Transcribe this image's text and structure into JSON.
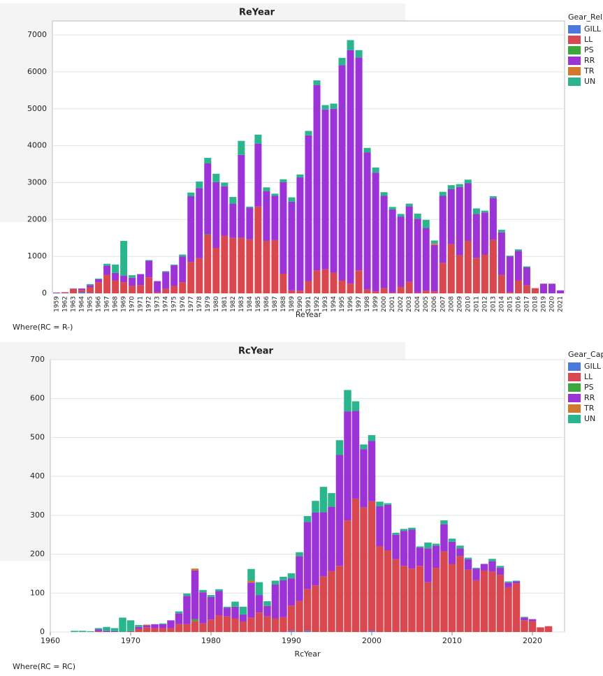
{
  "chart_data": [
    {
      "type": "bar",
      "stacked": true,
      "title": "ReYear",
      "x_label": "ReYear",
      "footnote": "Where(RC = R-)",
      "legend_title": "Gear_Rel",
      "categories": [
        "1959",
        "1962",
        "1963",
        "1964",
        "1965",
        "1966",
        "1967",
        "1968",
        "1969",
        "1970",
        "1971",
        "1972",
        "1973",
        "1974",
        "1975",
        "1976",
        "1977",
        "1978",
        "1979",
        "1980",
        "1981",
        "1982",
        "1983",
        "1984",
        "1985",
        "1986",
        "1987",
        "1988",
        "1989",
        "1990",
        "1991",
        "1992",
        "1993",
        "1994",
        "1995",
        "1996",
        "1997",
        "1998",
        "1999",
        "2000",
        "2001",
        "2002",
        "2003",
        "2004",
        "2005",
        "2006",
        "2007",
        "2008",
        "2009",
        "2010",
        "2011",
        "2012",
        "2013",
        "2014",
        "2015",
        "2016",
        "2017",
        "2018",
        "2019",
        "2020",
        "2021"
      ],
      "series": [
        {
          "name": "GILL",
          "color": "#4a78dc",
          "values": [
            0,
            0,
            0,
            30,
            10,
            0,
            0,
            0,
            0,
            0,
            0,
            0,
            0,
            0,
            0,
            0,
            0,
            0,
            0,
            0,
            0,
            0,
            0,
            0,
            0,
            0,
            0,
            0,
            0,
            0,
            0,
            0,
            0,
            0,
            0,
            0,
            0,
            0,
            0,
            0,
            0,
            0,
            0,
            0,
            0,
            0,
            0,
            0,
            0,
            0,
            0,
            0,
            0,
            0,
            0,
            0,
            0,
            0,
            0,
            0,
            0
          ]
        },
        {
          "name": "LL",
          "color": "#d9474f",
          "values": [
            0,
            20,
            120,
            60,
            150,
            300,
            500,
            350,
            300,
            200,
            220,
            430,
            30,
            120,
            200,
            300,
            850,
            950,
            1580,
            1230,
            1560,
            1500,
            1500,
            1460,
            2350,
            1420,
            1440,
            530,
            80,
            70,
            330,
            620,
            650,
            560,
            350,
            260,
            620,
            100,
            50,
            140,
            20,
            180,
            310,
            20,
            70,
            50,
            820,
            1330,
            1030,
            1420,
            960,
            1050,
            1450,
            500,
            30,
            350,
            220,
            140,
            0,
            0,
            0
          ]
        },
        {
          "name": "PS",
          "color": "#3aa83a",
          "values": [
            0,
            0,
            0,
            0,
            0,
            0,
            0,
            0,
            0,
            0,
            0,
            0,
            0,
            0,
            0,
            0,
            0,
            0,
            20,
            0,
            0,
            0,
            0,
            0,
            0,
            0,
            0,
            0,
            0,
            0,
            0,
            0,
            0,
            0,
            0,
            0,
            0,
            0,
            0,
            0,
            0,
            0,
            0,
            0,
            0,
            0,
            0,
            0,
            0,
            0,
            0,
            0,
            0,
            0,
            0,
            0,
            0,
            0,
            0,
            0,
            0
          ]
        },
        {
          "name": "RR",
          "color": "#9b33d6",
          "values": [
            20,
            10,
            10,
            40,
            60,
            80,
            250,
            200,
            180,
            220,
            300,
            450,
            300,
            460,
            560,
            700,
            1780,
            1900,
            1920,
            1780,
            1340,
            930,
            2250,
            860,
            1700,
            1350,
            1200,
            2480,
            2400,
            3070,
            3950,
            5020,
            4330,
            4440,
            5830,
            6330,
            5770,
            3720,
            3220,
            2500,
            2250,
            1900,
            2050,
            2000,
            1700,
            1260,
            1820,
            1490,
            1850,
            1560,
            1190,
            1140,
            1130,
            1150,
            970,
            800,
            480,
            0,
            260,
            260,
            80
          ]
        },
        {
          "name": "TR",
          "color": "#d3792b",
          "values": [
            0,
            0,
            0,
            0,
            0,
            0,
            0,
            0,
            0,
            0,
            0,
            0,
            0,
            0,
            0,
            0,
            0,
            0,
            0,
            0,
            0,
            0,
            0,
            0,
            0,
            0,
            0,
            0,
            0,
            0,
            0,
            0,
            0,
            0,
            0,
            0,
            0,
            0,
            0,
            0,
            0,
            0,
            0,
            0,
            0,
            40,
            0,
            0,
            0,
            0,
            0,
            0,
            0,
            0,
            0,
            0,
            0,
            0,
            0,
            0,
            0
          ]
        },
        {
          "name": "UN",
          "color": "#2ab58e",
          "values": [
            0,
            0,
            0,
            0,
            30,
            20,
            50,
            230,
            940,
            70,
            0,
            20,
            0,
            20,
            20,
            50,
            100,
            180,
            150,
            230,
            100,
            180,
            380,
            30,
            250,
            100,
            60,
            80,
            120,
            80,
            120,
            130,
            120,
            140,
            200,
            270,
            200,
            120,
            140,
            100,
            70,
            70,
            70,
            140,
            220,
            80,
            110,
            110,
            80,
            100,
            150,
            50,
            50,
            70,
            20,
            40,
            30,
            0,
            0,
            0,
            0
          ]
        }
      ],
      "ylim": [
        0,
        7380
      ],
      "yticks": [
        0,
        1000,
        2000,
        3000,
        4000,
        5000,
        6000,
        7000
      ],
      "grid": true
    },
    {
      "type": "bar",
      "stacked": true,
      "title": "RcYear",
      "x_label": "RcYear",
      "footnote": "Where(RC = RC)",
      "legend_title": "Gear_Cap",
      "x": [
        1963,
        1964,
        1965,
        1966,
        1967,
        1968,
        1969,
        1970,
        1971,
        1972,
        1973,
        1974,
        1975,
        1976,
        1977,
        1978,
        1979,
        1980,
        1981,
        1982,
        1983,
        1984,
        1985,
        1986,
        1987,
        1988,
        1989,
        1990,
        1991,
        1992,
        1993,
        1994,
        1995,
        1996,
        1997,
        1998,
        1999,
        2000,
        2001,
        2002,
        2003,
        2004,
        2005,
        2006,
        2007,
        2008,
        2009,
        2010,
        2011,
        2012,
        2013,
        2014,
        2015,
        2016,
        2017,
        2018,
        2019,
        2020,
        2021,
        2022
      ],
      "series": [
        {
          "name": "GILL",
          "color": "#4a78dc",
          "values": [
            0,
            0,
            0,
            0,
            0,
            0,
            0,
            0,
            0,
            0,
            0,
            0,
            0,
            0,
            0,
            0,
            0,
            0,
            0,
            0,
            0,
            0,
            0,
            0,
            0,
            0,
            0,
            3,
            0,
            3,
            0,
            0,
            0,
            0,
            0,
            0,
            0,
            3,
            0,
            0,
            0,
            0,
            0,
            0,
            0,
            0,
            0,
            0,
            0,
            0,
            0,
            0,
            0,
            0,
            0,
            0,
            0,
            0,
            0,
            0
          ]
        },
        {
          "name": "LL",
          "color": "#d9474f",
          "values": [
            0,
            0,
            0,
            2,
            0,
            0,
            0,
            2,
            8,
            12,
            10,
            10,
            10,
            20,
            20,
            28,
            22,
            32,
            43,
            40,
            35,
            27,
            37,
            50,
            40,
            35,
            38,
            65,
            80,
            107,
            120,
            143,
            157,
            170,
            287,
            343,
            320,
            333,
            220,
            210,
            187,
            170,
            163,
            170,
            128,
            165,
            207,
            175,
            195,
            160,
            133,
            158,
            155,
            147,
            115,
            125,
            30,
            28,
            12,
            15
          ]
        },
        {
          "name": "PS",
          "color": "#3aa83a",
          "values": [
            0,
            0,
            0,
            0,
            0,
            0,
            0,
            0,
            0,
            0,
            0,
            0,
            0,
            0,
            0,
            5,
            0,
            0,
            0,
            0,
            0,
            0,
            0,
            0,
            0,
            0,
            0,
            0,
            0,
            0,
            0,
            0,
            0,
            0,
            0,
            0,
            0,
            0,
            0,
            0,
            0,
            0,
            0,
            0,
            0,
            0,
            0,
            0,
            0,
            0,
            0,
            0,
            0,
            0,
            0,
            0,
            0,
            0,
            0,
            0
          ]
        },
        {
          "name": "RR",
          "color": "#9b33d6",
          "values": [
            0,
            0,
            0,
            5,
            3,
            2,
            0,
            0,
            5,
            5,
            10,
            10,
            20,
            28,
            73,
            125,
            80,
            58,
            62,
            22,
            30,
            18,
            90,
            45,
            27,
            87,
            95,
            70,
            115,
            173,
            187,
            165,
            165,
            285,
            280,
            225,
            150,
            155,
            103,
            117,
            63,
            90,
            100,
            47,
            87,
            57,
            70,
            57,
            20,
            27,
            30,
            17,
            27,
            18,
            12,
            5,
            7,
            5,
            0,
            0
          ]
        },
        {
          "name": "TR",
          "color": "#d3792b",
          "values": [
            0,
            0,
            0,
            0,
            0,
            0,
            0,
            0,
            0,
            2,
            0,
            0,
            0,
            0,
            0,
            5,
            0,
            0,
            0,
            0,
            0,
            0,
            5,
            0,
            0,
            0,
            0,
            0,
            0,
            0,
            0,
            0,
            0,
            0,
            0,
            0,
            0,
            0,
            0,
            0,
            0,
            0,
            0,
            0,
            0,
            0,
            0,
            0,
            0,
            0,
            0,
            0,
            0,
            0,
            0,
            0,
            0,
            0,
            0,
            0
          ]
        },
        {
          "name": "UN",
          "color": "#2ab58e",
          "values": [
            3,
            3,
            2,
            3,
            10,
            8,
            37,
            28,
            5,
            0,
            0,
            2,
            0,
            5,
            6,
            0,
            6,
            5,
            5,
            3,
            13,
            20,
            30,
            33,
            12,
            10,
            9,
            13,
            10,
            15,
            30,
            65,
            35,
            38,
            55,
            25,
            12,
            15,
            12,
            4,
            5,
            5,
            5,
            3,
            15,
            5,
            10,
            8,
            7,
            4,
            2,
            0,
            6,
            5,
            3,
            2,
            2,
            0,
            0,
            0
          ]
        }
      ],
      "xlim": [
        1960,
        2024
      ],
      "xticks": [
        1960,
        1970,
        1980,
        1990,
        2000,
        2010,
        2020
      ],
      "ylim": [
        0,
        700
      ],
      "yticks": [
        0,
        100,
        200,
        300,
        400,
        500,
        600,
        700
      ],
      "grid": true
    }
  ]
}
